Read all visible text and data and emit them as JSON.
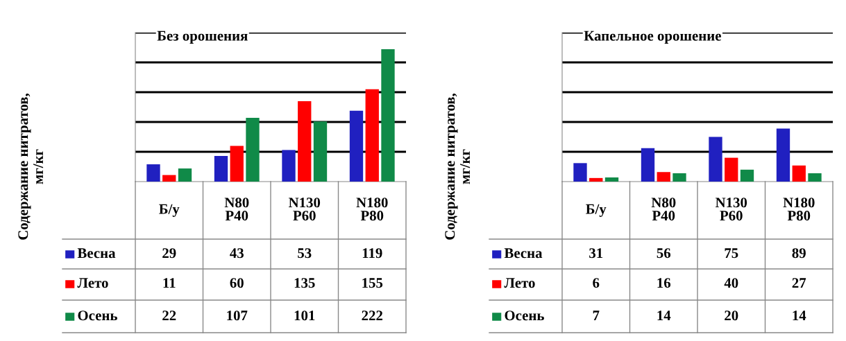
{
  "chart_data": [
    {
      "type": "bar",
      "title": "Без орошения",
      "ylabel": "Содержание нитратов,\nмг/кг",
      "categories": [
        "Б/у",
        "N80\nP40",
        "N130\nP60",
        "N180\nP80"
      ],
      "ylim": [
        0,
        250
      ],
      "yticks": [
        {
          "value": 50,
          "label": null
        },
        {
          "value": 100,
          "label": null
        },
        {
          "value": 150,
          "label": null
        },
        {
          "value": 200,
          "label": null
        },
        {
          "value": 250,
          "label": null
        }
      ],
      "grid": "y",
      "data_labels": true,
      "legend": "bottom",
      "series": [
        {
          "name": "Весна",
          "color": "#2020c0",
          "values": [
            29,
            43,
            53,
            119
          ]
        },
        {
          "name": "Лето",
          "color": "#ff0000",
          "values": [
            11,
            60,
            135,
            155
          ]
        },
        {
          "name": "Осень",
          "color": "#108a48",
          "values": [
            22,
            107,
            101,
            222
          ]
        }
      ]
    },
    {
      "type": "bar",
      "title": "Капельное орошение",
      "ylabel": "Содержание нитратов,\nмг/кг",
      "categories": [
        "Б/у",
        "N80\nP40",
        "N130\nP60",
        "N180\nP80"
      ],
      "ylim": [
        0,
        250
      ],
      "yticks": [
        {
          "value": 50,
          "label": null
        },
        {
          "value": 100,
          "label": null
        },
        {
          "value": 150,
          "label": null
        },
        {
          "value": 200,
          "label": null
        },
        {
          "value": 250,
          "label": null
        }
      ],
      "grid": "y",
      "data_labels": true,
      "legend": "bottom",
      "series": [
        {
          "name": "Весна",
          "color": "#2020c0",
          "values": [
            31,
            56,
            75,
            89
          ]
        },
        {
          "name": "Лето",
          "color": "#ff0000",
          "values": [
            6,
            16,
            40,
            27
          ]
        },
        {
          "name": "Осень",
          "color": "#108a48",
          "values": [
            7,
            14,
            20,
            14
          ]
        }
      ]
    }
  ]
}
